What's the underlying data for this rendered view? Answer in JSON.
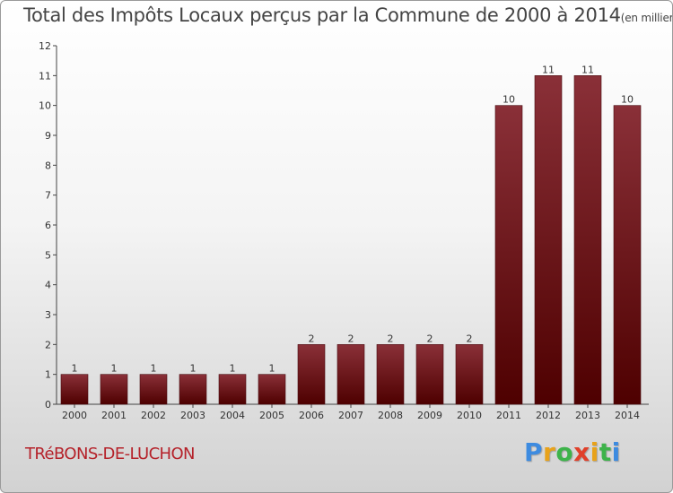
{
  "title": "Total des Impôts Locaux perçus par la Commune de 2000 à 2014",
  "unit": "(en milliers d'€)",
  "commune": "TRéBONS-DE-LUCHON",
  "logo": {
    "text": "Proxiti",
    "colors": [
      "#3d8be0",
      "#e8a21a",
      "#3db34a",
      "#e0402a"
    ]
  },
  "chart_data": {
    "type": "bar",
    "title": "Total des Impôts Locaux perçus par la Commune de 2000 à 2014",
    "subtitle": "(en milliers d'€)",
    "categories": [
      "2000",
      "2001",
      "2002",
      "2003",
      "2004",
      "2005",
      "2006",
      "2007",
      "2008",
      "2009",
      "2010",
      "2011",
      "2012",
      "2013",
      "2014"
    ],
    "values": [
      1,
      1,
      1,
      1,
      1,
      1,
      2,
      2,
      2,
      2,
      2,
      10,
      11,
      11,
      10
    ],
    "labels": [
      "1",
      "1",
      "1",
      "1",
      "1",
      "1",
      "2",
      "2",
      "2",
      "2",
      "2",
      "10",
      "11",
      "11",
      "10"
    ],
    "yticks": [
      "0",
      "1",
      "2",
      "3",
      "4",
      "5",
      "6",
      "7",
      "8",
      "9",
      "10",
      "11",
      "12"
    ],
    "ylim": [
      0,
      12
    ],
    "grid": false,
    "bar_color": "#7a1c22",
    "xlabel": "",
    "ylabel": ""
  }
}
